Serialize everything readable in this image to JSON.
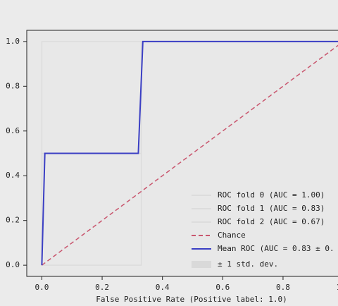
{
  "chart_data": {
    "type": "line",
    "xlabel": "False Positive Rate (Positive label: 1.0)",
    "xlim": [
      -0.05,
      1.05
    ],
    "ylim": [
      -0.05,
      1.05
    ],
    "xticks": [
      {
        "value": 0,
        "label": "0.0"
      },
      {
        "value": 0.2,
        "label": "0.2"
      },
      {
        "value": 0.4,
        "label": "0.4"
      },
      {
        "value": 0.6,
        "label": "0.6"
      },
      {
        "value": 0.8,
        "label": "0.8"
      },
      {
        "value": 1,
        "label": "1.0"
      }
    ],
    "yticks": [
      {
        "value": 0,
        "label": "0.0"
      },
      {
        "value": 0.2,
        "label": "0.2"
      },
      {
        "value": 0.4,
        "label": "0.4"
      },
      {
        "value": 0.6,
        "label": "0.6"
      },
      {
        "value": 0.8,
        "label": "0.8"
      },
      {
        "value": 1,
        "label": "1.0"
      }
    ],
    "series": [
      {
        "name": "ROC fold 0 (AUC = 1.00)",
        "color": "#dcdcdc",
        "dash": false,
        "x": [
          0,
          0,
          1
        ],
        "values": [
          0,
          1,
          1
        ]
      },
      {
        "name": "ROC fold 1 (AUC = 0.83)",
        "color": "#dcdcdc",
        "dash": false,
        "x": [
          0,
          0,
          0.33,
          0.33,
          1
        ],
        "values": [
          0,
          0.5,
          0.5,
          1,
          1
        ]
      },
      {
        "name": "ROC fold 2 (AUC = 0.67)",
        "color": "#dcdcdc",
        "dash": false,
        "x": [
          0,
          0.33,
          0.33,
          1
        ],
        "values": [
          0,
          0,
          1,
          1
        ]
      },
      {
        "name": "Chance",
        "color": "#c9566e",
        "dash": true,
        "x": [
          0,
          1
        ],
        "values": [
          0,
          1
        ]
      },
      {
        "name": "Mean ROC (AUC = 0.83 ± 0.",
        "color": "#3b3fc4",
        "dash": false,
        "x": [
          0,
          0.01,
          0.32,
          0.335,
          1
        ],
        "values": [
          0,
          0.5,
          0.5,
          1,
          1
        ]
      }
    ],
    "band": {
      "name": "± 1 std. dev.",
      "color": "#d9d9d9"
    }
  }
}
